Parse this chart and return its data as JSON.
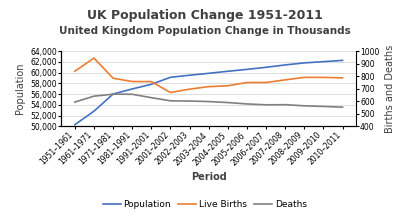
{
  "title": "UK Population Change 1951-2011",
  "subtitle": "United Kingdom Population Change in Thousands",
  "xlabel": "Period",
  "ylabel_left": "Population",
  "ylabel_right": "Births and Deaths",
  "periods": [
    "1951–1961",
    "1961–1971",
    "1971–1981",
    "1981–1991",
    "1991–2001",
    "2001–2002",
    "2002–2003",
    "2003–2004",
    "2004–2005",
    "2005–2006",
    "2006–2007",
    "2007–2008",
    "2008–2009",
    "2009–2010",
    "2010–2011"
  ],
  "population": [
    50290,
    52807,
    56000,
    56946,
    57808,
    59113,
    59501,
    59855,
    60234,
    60587,
    60975,
    61414,
    61792,
    62026,
    62262
  ],
  "live_births": [
    839,
    944,
    783,
    757,
    756,
    669,
    696,
    716,
    723,
    749,
    749,
    770,
    790,
    790,
    786
  ],
  "deaths": [
    593,
    640,
    656,
    655,
    628,
    603,
    601,
    597,
    589,
    578,
    571,
    572,
    563,
    558,
    552
  ],
  "pop_color": "#4472C4",
  "births_color": "#ED7D31",
  "deaths_color": "#808080",
  "title_color": "#404040",
  "subtitle_color": "#404040",
  "ylim_left": [
    50000,
    64000
  ],
  "ylim_right": [
    400,
    1000
  ],
  "yticks_left": [
    50000,
    52000,
    54000,
    56000,
    58000,
    60000,
    62000,
    64000
  ],
  "yticks_right": [
    400,
    500,
    600,
    700,
    800,
    900,
    1000
  ],
  "background_color": "#ffffff",
  "title_fontsize": 9,
  "subtitle_fontsize": 7.5,
  "axis_label_fontsize": 7,
  "tick_fontsize": 5.5,
  "legend_fontsize": 6.5
}
